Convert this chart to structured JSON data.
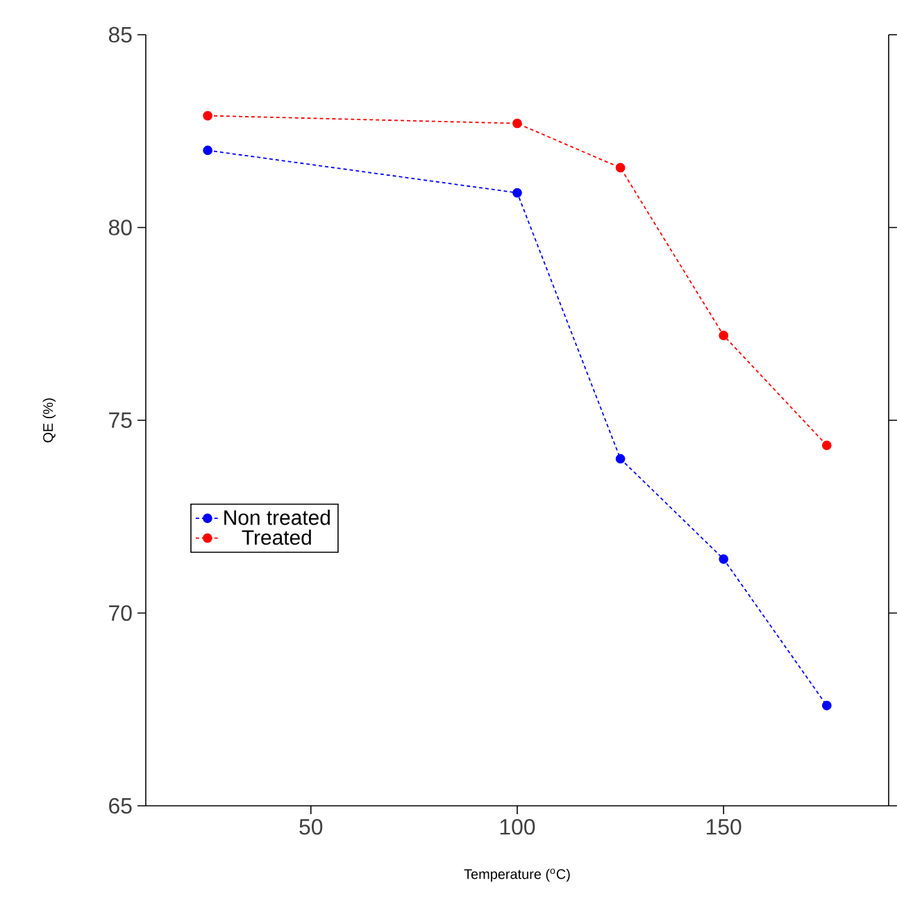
{
  "chart_data": {
    "type": "line",
    "xlabel": "Temperature ($^{o}$C)",
    "ylabel": "QE (%)",
    "x": [
      25,
      100,
      125,
      150,
      175
    ],
    "series": [
      {
        "name": "Non treated",
        "color": "#0000ff",
        "values": [
          82.0,
          80.9,
          74.0,
          71.4,
          67.6
        ]
      },
      {
        "name": "Treated",
        "color": "#ff0000",
        "values": [
          82.9,
          82.7,
          81.55,
          77.2,
          74.35
        ]
      }
    ],
    "xlim": [
      10,
      190
    ],
    "ylim": [
      65,
      85
    ],
    "xticks": [
      50,
      100,
      150
    ],
    "yticks": [
      65,
      70,
      75,
      80,
      85
    ],
    "legend": "left",
    "marker": "circle",
    "line_style": "dashed",
    "grid": false
  }
}
